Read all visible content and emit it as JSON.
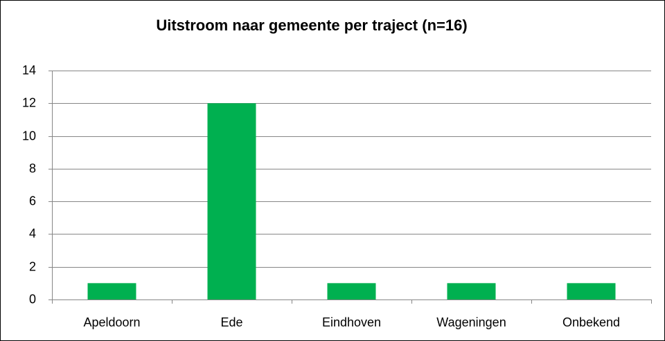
{
  "chart_data": {
    "type": "bar",
    "title": "Uitstroom naar gemeente per traject (n=16)",
    "categories": [
      "Apeldoorn",
      "Ede",
      "Eindhoven",
      "Wageningen",
      "Onbekend"
    ],
    "values": [
      1,
      12,
      1,
      1,
      1
    ],
    "color": "#00b050",
    "ylim": [
      0,
      14
    ],
    "yticks": [
      0,
      2,
      4,
      6,
      8,
      10,
      12,
      14
    ],
    "grid": true
  }
}
